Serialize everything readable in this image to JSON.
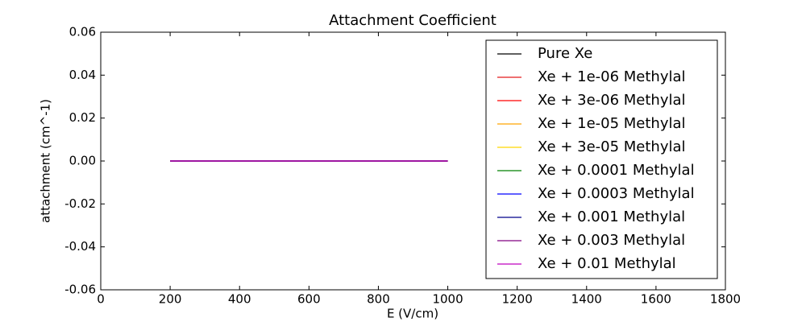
{
  "chart_data": {
    "type": "line",
    "title": "Attachment Coefficient",
    "x_label": "E (V/cm)",
    "y_label": "attachment (cm^-1)",
    "x": [
      200,
      400,
      600,
      800,
      1000
    ],
    "series": [
      {
        "name": "Pure Xe",
        "color": "#000000",
        "values": [
          0,
          0,
          0,
          0,
          0
        ]
      },
      {
        "name": "Xe + 1e-06 Methylal",
        "color": "#e41a1c",
        "values": [
          0,
          0,
          0,
          0,
          0
        ]
      },
      {
        "name": "Xe + 3e-06 Methylal",
        "color": "#ff0000",
        "values": [
          0,
          0,
          0,
          0,
          0
        ]
      },
      {
        "name": "Xe + 1e-05 Methylal",
        "color": "#ffa500",
        "values": [
          0,
          0,
          0,
          0,
          0
        ]
      },
      {
        "name": "Xe + 3e-05 Methylal",
        "color": "#ffd700",
        "values": [
          0,
          0,
          0,
          0,
          0
        ]
      },
      {
        "name": "Xe + 0.0001 Methylal",
        "color": "#008000",
        "values": [
          0,
          0,
          0,
          0,
          0
        ]
      },
      {
        "name": "Xe + 0.0003 Methylal",
        "color": "#0000ff",
        "values": [
          0,
          0,
          0,
          0,
          0
        ]
      },
      {
        "name": "Xe + 0.001 Methylal",
        "color": "#00008b",
        "values": [
          0,
          0,
          0,
          0,
          0
        ]
      },
      {
        "name": "Xe + 0.003 Methylal",
        "color": "#800080",
        "values": [
          0,
          0,
          0,
          0,
          0
        ]
      },
      {
        "name": "Xe + 0.01 Methylal",
        "color": "#bf00bf",
        "values": [
          0,
          0,
          0,
          0,
          0
        ]
      }
    ],
    "xlim": [
      0,
      1800
    ],
    "xticks": [
      0,
      200,
      400,
      600,
      800,
      1000,
      1200,
      1400,
      1600,
      1800
    ],
    "ylim": [
      -0.06,
      0.06
    ],
    "yticks": [
      -0.06,
      -0.04,
      -0.02,
      {
        "value": 0,
        "label": "0.00"
      },
      0.02,
      0.04,
      0.06
    ],
    "legend": "upper right",
    "grid": false
  }
}
